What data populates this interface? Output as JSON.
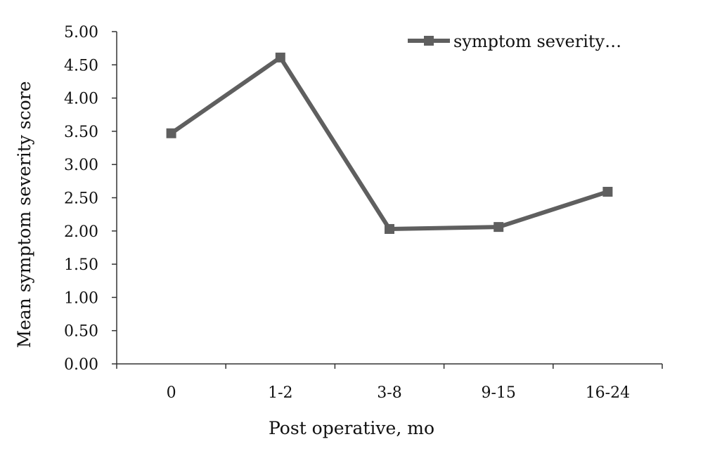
{
  "chart_data": {
    "type": "line",
    "categories": [
      "0",
      "1-2",
      "3-8",
      "9-15",
      "16-24"
    ],
    "series": [
      {
        "name": "symptom severity…",
        "values": [
          3.47,
          4.61,
          2.03,
          2.06,
          2.59
        ]
      }
    ],
    "xlabel": "Post operative, mo",
    "ylabel": "Mean symptom severity score",
    "ylim": [
      0,
      5
    ],
    "yticks": [
      "0.00",
      "0.50",
      "1.00",
      "1.50",
      "2.00",
      "2.50",
      "3.00",
      "3.50",
      "4.00",
      "4.50",
      "5.00"
    ],
    "legend_position": "top-right",
    "grid": false,
    "line_color": "#5f5f5f",
    "marker": "square"
  }
}
